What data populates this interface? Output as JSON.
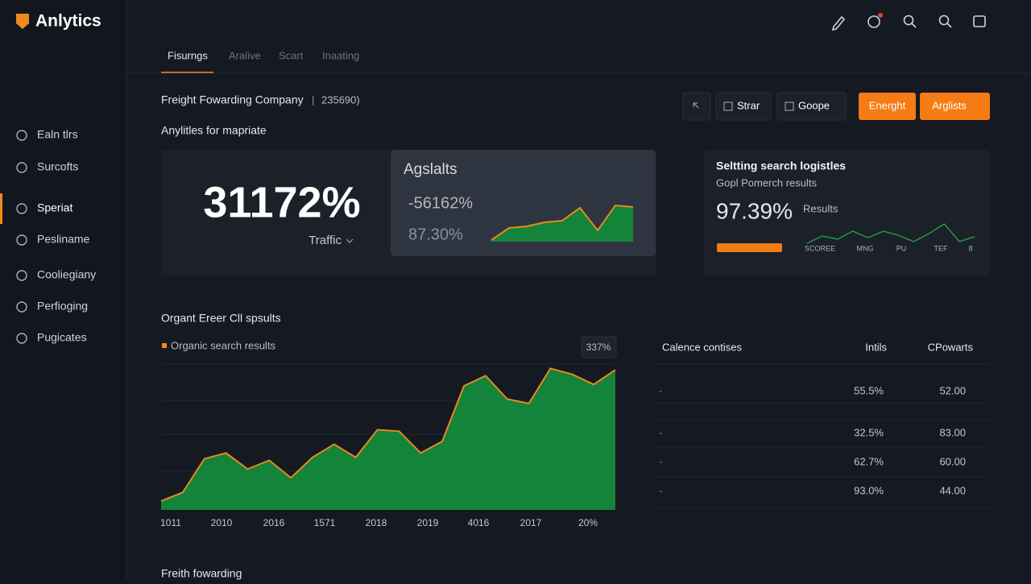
{
  "logo": "Anlytics",
  "nav": {
    "items": [
      "Ealn tlrs",
      "Surcofts",
      "Speriat",
      "Pesliname",
      "Cooliegiany",
      "Perfioging",
      "Pugicates"
    ],
    "active": 2
  },
  "tabs": {
    "items": [
      "Fisurngs",
      "Aralive",
      "Scart",
      "Inaating"
    ],
    "active": 0
  },
  "header": {
    "company": "Freight Fowarding Company",
    "separator": "|",
    "code": "235690)",
    "subtitle": "Anylitles for mapriate"
  },
  "buttons": [
    "Strar",
    "Goope",
    "Energht",
    "Arglists"
  ],
  "card_traffic": {
    "value": "31172%",
    "label": "Traffic"
  },
  "card_agslalts": {
    "title": "Agslalts",
    "line1": "-56162%",
    "line2": "87.30%",
    "values": [
      4,
      34,
      38,
      48,
      52,
      84,
      28,
      90,
      86
    ]
  },
  "card_search": {
    "title": "Seltting search logistles",
    "subtitle": "Gopl Pomerch results",
    "value": "97.39%",
    "label": "Results",
    "values": [
      10,
      40,
      27,
      60,
      33,
      60,
      43,
      17,
      50,
      90,
      17,
      37
    ],
    "labels": [
      "SCOREE",
      "MNG",
      "PU",
      "TEF",
      "8"
    ]
  },
  "area_chart": {
    "title": "Organt Ereer Cll spsults",
    "legend": "Organic search results",
    "badge": "337%",
    "color": "#13843a",
    "line_color": "#e98a1a",
    "ylim": [
      0,
      100
    ],
    "values": [
      6,
      12,
      35,
      39,
      28,
      34,
      22,
      36,
      45,
      36,
      55,
      54,
      39,
      47,
      85,
      92,
      76,
      73,
      97,
      93,
      86,
      96
    ],
    "x_labels": [
      "1011",
      "2010",
      "2016",
      "1571",
      "2018",
      "2019",
      "4016",
      "2017",
      "20%"
    ]
  },
  "table": {
    "headers": [
      "Calence contises",
      "Intils",
      "CPowarts"
    ],
    "rows": [
      [
        "-",
        "55.5%",
        "52.00"
      ],
      [
        "-",
        "32.5%",
        "83.00"
      ],
      [
        "-",
        "62.7%",
        "60.00"
      ],
      [
        "-",
        "93.0%",
        "44.00"
      ]
    ]
  },
  "footer_title": "Freith fowarding"
}
